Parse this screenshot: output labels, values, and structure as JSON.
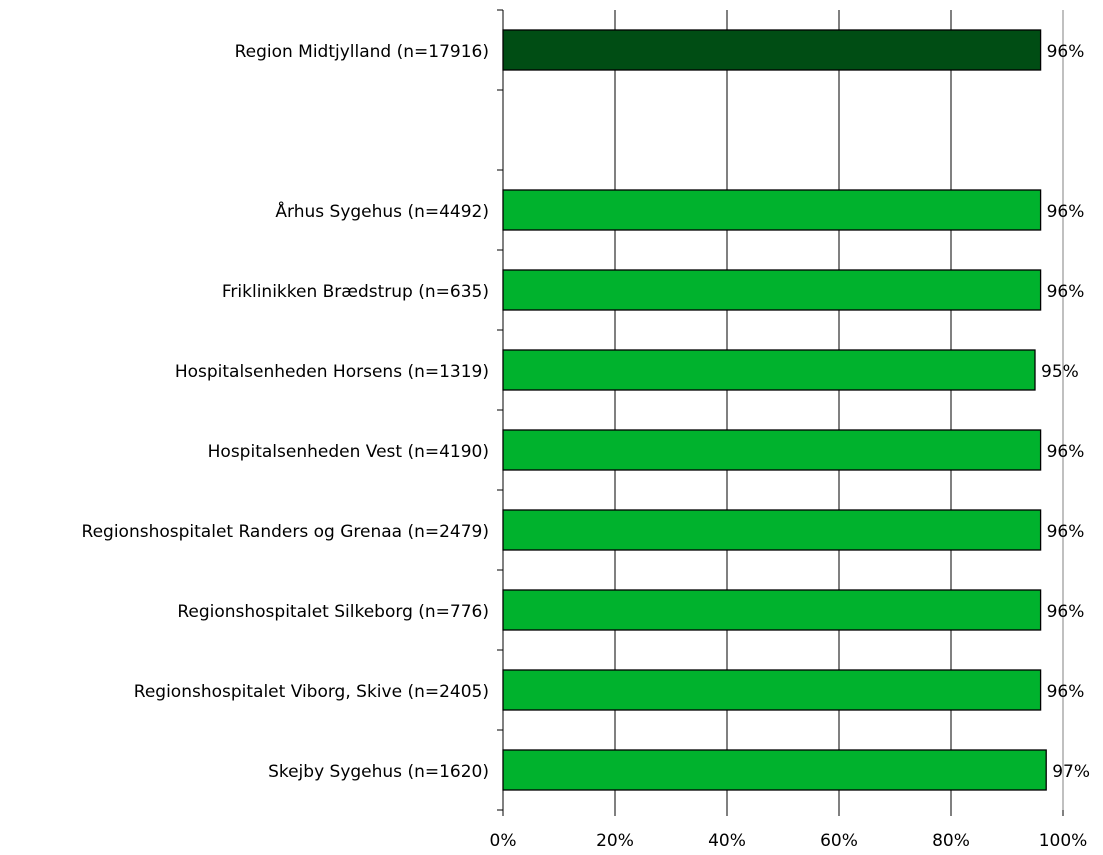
{
  "chart_data": {
    "type": "bar",
    "orientation": "horizontal",
    "categories": [
      "Region Midtjylland (n=17916)",
      "",
      "Århus Sygehus (n=4492)",
      "Friklinikken Brædstrup (n=635)",
      "Hospitalsenheden Horsens (n=1319)",
      "Hospitalsenheden Vest (n=4190)",
      "Regionshospitalet Randers og Grenaa (n=2479)",
      "Regionshospitalet Silkeborg (n=776)",
      "Regionshospitalet Viborg, Skive (n=2405)",
      "Skejby Sygehus (n=1620)"
    ],
    "values": [
      96,
      null,
      96,
      96,
      95,
      96,
      96,
      96,
      96,
      97
    ],
    "data_labels": [
      "96%",
      "",
      "96%",
      "96%",
      "95%",
      "96%",
      "96%",
      "96%",
      "96%",
      "97%"
    ],
    "bar_colors": [
      "#004d14",
      null,
      "#00b22d",
      "#00b22d",
      "#00b22d",
      "#00b22d",
      "#00b22d",
      "#00b22d",
      "#00b22d",
      "#00b22d"
    ],
    "xlim": [
      0,
      100
    ],
    "x_ticks": [
      0,
      20,
      40,
      60,
      80,
      100
    ],
    "x_tick_labels": [
      "0%",
      "20%",
      "40%",
      "60%",
      "80%",
      "100%"
    ],
    "title": "",
    "xlabel": "",
    "ylabel": "",
    "grid": "vertical",
    "legend": "none"
  }
}
